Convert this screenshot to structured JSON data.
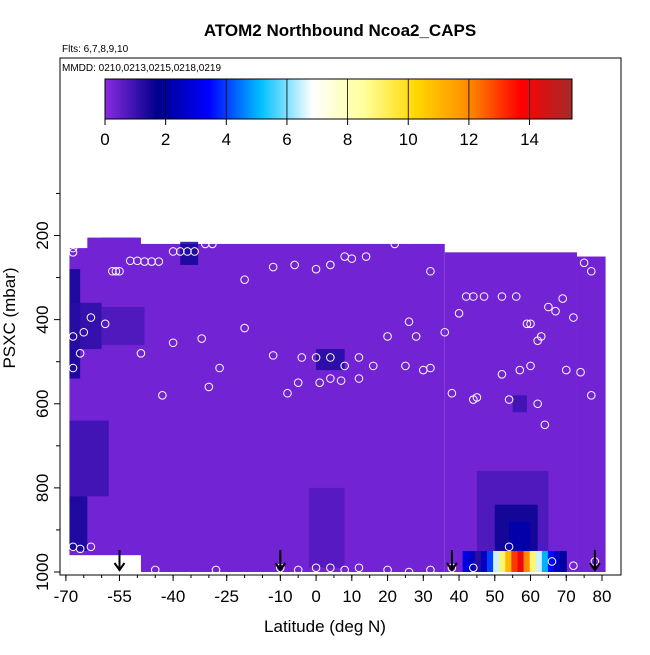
{
  "chart_data": {
    "type": "heatmap",
    "title": "ATOM2 Northbound Ncoa2_CAPS",
    "subtitle_flights": "Flts: 6,7,8,9,10",
    "subtitle_dates": "MMDD: 0210,0213,0215,0218,0219",
    "xlabel": "Latitude (deg N)",
    "ylabel": "PSXC (mbar)",
    "xlim": [
      -70,
      80
    ],
    "ylim": [
      1000,
      0
    ],
    "x_ticks": [
      -70,
      -55,
      -40,
      -25,
      -10,
      0,
      10,
      20,
      30,
      40,
      50,
      60,
      70,
      80
    ],
    "y_ticks": [
      200,
      400,
      600,
      800,
      1000
    ],
    "colorbar": {
      "ticks": [
        0,
        2,
        4,
        6,
        8,
        10,
        12,
        14
      ],
      "range": [
        0,
        15.4
      ],
      "stops": [
        "#8a2be2",
        "#00008b",
        "#0000ff",
        "#00bfff",
        "#ffffff",
        "#ffff99",
        "#ffd700",
        "#ff8c00",
        "#ff0000",
        "#a52a2a"
      ]
    },
    "background_value": 0.3,
    "regions": [
      {
        "lat": [
          -69,
          -66
        ],
        "p": [
          280,
          540
        ],
        "value": 1.5
      },
      {
        "lat": [
          -69,
          -60
        ],
        "p": [
          360,
          470
        ],
        "value": 1.2
      },
      {
        "lat": [
          -60,
          -48
        ],
        "p": [
          370,
          460
        ],
        "value": 0.8
      },
      {
        "lat": [
          -69,
          -58
        ],
        "p": [
          640,
          820
        ],
        "value": 1.0
      },
      {
        "lat": [
          -69,
          -64
        ],
        "p": [
          820,
          950
        ],
        "value": 1.5
      },
      {
        "lat": [
          -38,
          -33
        ],
        "p": [
          215,
          270
        ],
        "value": 1.5
      },
      {
        "lat": [
          0,
          8
        ],
        "p": [
          470,
          520
        ],
        "value": 1.3
      },
      {
        "lat": [
          -2,
          8
        ],
        "p": [
          800,
          990
        ],
        "value": 0.7
      },
      {
        "lat": [
          45,
          65
        ],
        "p": [
          760,
          990
        ],
        "value": 0.8
      },
      {
        "lat": [
          50,
          62
        ],
        "p": [
          840,
          990
        ],
        "value": 1.6
      },
      {
        "lat": [
          54,
          60
        ],
        "p": [
          880,
          960
        ],
        "value": 2.2
      },
      {
        "lat": [
          55,
          59
        ],
        "p": [
          580,
          620
        ],
        "value": 1.0
      }
    ],
    "surface_strip": {
      "p": [
        950,
        1000
      ],
      "lat": [
        41,
        70
      ],
      "values": [
        3.0,
        2.5,
        1.2,
        2.5,
        4.0,
        6.5,
        9.0,
        11.0,
        13.0,
        14.0,
        12.0,
        9.0,
        6.5,
        5.0,
        3.5,
        2.5,
        2.0
      ]
    },
    "points": [
      [
        -68,
        230
      ],
      [
        -67,
        220
      ],
      [
        -68,
        240
      ],
      [
        -65,
        200
      ],
      [
        -62,
        190
      ],
      [
        -60,
        190
      ],
      [
        -57,
        285
      ],
      [
        -56,
        285
      ],
      [
        -55,
        285
      ],
      [
        -52,
        260
      ],
      [
        -50,
        260
      ],
      [
        -48,
        262
      ],
      [
        -46,
        262
      ],
      [
        -44,
        262
      ],
      [
        -40,
        238
      ],
      [
        -38,
        238
      ],
      [
        -36,
        238
      ],
      [
        -34,
        238
      ],
      [
        -31,
        220
      ],
      [
        -29,
        220
      ],
      [
        -27,
        205
      ],
      [
        -20,
        305
      ],
      [
        -12,
        275
      ],
      [
        -6,
        270
      ],
      [
        0,
        280
      ],
      [
        4,
        270
      ],
      [
        8,
        250
      ],
      [
        10,
        255
      ],
      [
        14,
        250
      ],
      [
        22,
        220
      ],
      [
        26,
        210
      ],
      [
        32,
        285
      ],
      [
        38,
        210
      ],
      [
        -68,
        440
      ],
      [
        -66,
        480
      ],
      [
        -65,
        430
      ],
      [
        -63,
        395
      ],
      [
        -59,
        410
      ],
      [
        -49,
        480
      ],
      [
        -40,
        455
      ],
      [
        -32,
        445
      ],
      [
        -27,
        515
      ],
      [
        -20,
        420
      ],
      [
        -12,
        485
      ],
      [
        -4,
        490
      ],
      [
        0,
        490
      ],
      [
        4,
        490
      ],
      [
        8,
        510
      ],
      [
        12,
        490
      ],
      [
        16,
        510
      ],
      [
        20,
        440
      ],
      [
        25,
        510
      ],
      [
        28,
        440
      ],
      [
        32,
        515
      ],
      [
        36,
        430
      ],
      [
        40,
        385
      ],
      [
        42,
        345
      ],
      [
        44,
        345
      ],
      [
        47,
        345
      ],
      [
        52,
        345
      ],
      [
        56,
        345
      ],
      [
        59,
        410
      ],
      [
        60,
        410
      ],
      [
        62,
        450
      ],
      [
        63,
        440
      ],
      [
        65,
        370
      ],
      [
        67,
        380
      ],
      [
        69,
        350
      ],
      [
        72,
        395
      ],
      [
        75,
        265
      ],
      [
        77,
        285
      ],
      [
        -68,
        515
      ],
      [
        -68,
        940
      ],
      [
        -66,
        945
      ],
      [
        -63,
        940
      ],
      [
        -43,
        580
      ],
      [
        -30,
        560
      ],
      [
        -8,
        575
      ],
      [
        -5,
        550
      ],
      [
        1,
        550
      ],
      [
        4,
        540
      ],
      [
        7,
        545
      ],
      [
        12,
        540
      ],
      [
        26,
        405
      ],
      [
        30,
        520
      ],
      [
        38,
        575
      ],
      [
        44,
        590
      ],
      [
        45,
        585
      ],
      [
        52,
        530
      ],
      [
        54,
        590
      ],
      [
        57,
        520
      ],
      [
        60,
        510
      ],
      [
        62,
        600
      ],
      [
        64,
        650
      ],
      [
        70,
        520
      ],
      [
        74,
        525
      ],
      [
        77,
        580
      ],
      [
        78,
        975
      ],
      [
        -57,
        995
      ],
      [
        -45,
        995
      ],
      [
        -28,
        995
      ],
      [
        -10,
        990
      ],
      [
        -5,
        995
      ],
      [
        0,
        990
      ],
      [
        4,
        990
      ],
      [
        8,
        995
      ],
      [
        12,
        990
      ],
      [
        20,
        995
      ],
      [
        26,
        1000
      ],
      [
        32,
        995
      ],
      [
        38,
        990
      ],
      [
        44,
        990
      ],
      [
        54,
        940
      ],
      [
        66,
        975
      ],
      [
        72,
        985
      ]
    ],
    "arrows": [
      -55,
      -10,
      38,
      78
    ]
  }
}
